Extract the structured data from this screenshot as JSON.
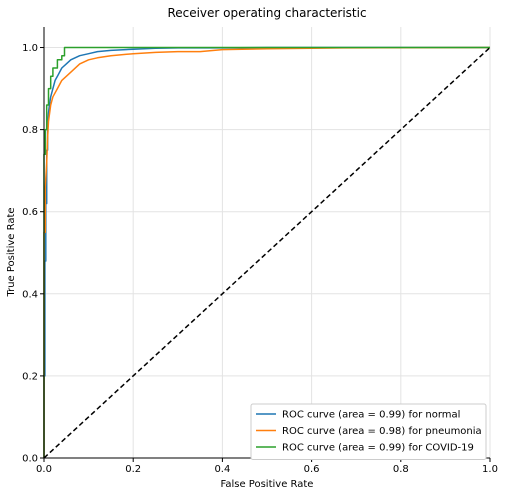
{
  "chart_data": {
    "type": "line",
    "title": "Receiver operating characteristic",
    "xlabel": "False Positive Rate",
    "ylabel": "True Positive Rate",
    "xlim": [
      0,
      1.0
    ],
    "ylim": [
      0,
      1.05
    ],
    "xticks": [
      "0.0",
      "0.2",
      "0.4",
      "0.6",
      "0.8",
      "1.0"
    ],
    "yticks": [
      "0.0",
      "0.2",
      "0.4",
      "0.6",
      "0.8",
      "1.0"
    ],
    "grid": true,
    "legend_position": "lower-right",
    "series": [
      {
        "name": "ROC curve (area = 0.99) for normal",
        "color": "#1f77b4",
        "x": [
          0,
          0,
          0.002,
          0.002,
          0.004,
          0.004,
          0.006,
          0.006,
          0.008,
          0.008,
          0.01,
          0.012,
          0.015,
          0.02,
          0.025,
          0.03,
          0.04,
          0.05,
          0.06,
          0.08,
          0.1,
          0.12,
          0.15,
          0.2,
          0.25,
          0.3,
          0.4,
          0.5,
          1.0
        ],
        "y": [
          0,
          0.2,
          0.2,
          0.48,
          0.48,
          0.62,
          0.62,
          0.75,
          0.75,
          0.8,
          0.84,
          0.86,
          0.88,
          0.9,
          0.92,
          0.93,
          0.95,
          0.96,
          0.97,
          0.98,
          0.985,
          0.99,
          0.993,
          0.996,
          0.998,
          0.999,
          0.999,
          1.0,
          1.0
        ]
      },
      {
        "name": "ROC curve (area = 0.98) for pneumonia",
        "color": "#ff7f0e",
        "x": [
          0,
          0,
          0.003,
          0.003,
          0.006,
          0.008,
          0.01,
          0.015,
          0.02,
          0.03,
          0.04,
          0.05,
          0.06,
          0.08,
          0.1,
          0.12,
          0.15,
          0.2,
          0.25,
          0.3,
          0.35,
          0.4,
          0.5,
          0.6,
          0.67,
          1.0
        ],
        "y": [
          0,
          0.55,
          0.55,
          0.66,
          0.72,
          0.78,
          0.82,
          0.86,
          0.88,
          0.9,
          0.92,
          0.93,
          0.94,
          0.96,
          0.97,
          0.975,
          0.98,
          0.985,
          0.988,
          0.99,
          0.99,
          0.995,
          0.997,
          0.998,
          0.999,
          1.0
        ]
      },
      {
        "name": "ROC curve (area = 0.99) for COVID-19",
        "color": "#2ca02c",
        "x": [
          0,
          0,
          0.003,
          0.003,
          0.006,
          0.006,
          0.01,
          0.01,
          0.015,
          0.015,
          0.02,
          0.02,
          0.03,
          0.03,
          0.04,
          0.04,
          0.046,
          0.046,
          1.0
        ],
        "y": [
          0,
          0.74,
          0.74,
          0.8,
          0.8,
          0.86,
          0.86,
          0.9,
          0.9,
          0.93,
          0.93,
          0.95,
          0.95,
          0.97,
          0.97,
          0.98,
          0.98,
          1.0,
          1.0
        ]
      },
      {
        "name": "",
        "color": "#000000",
        "dashed": true,
        "x": [
          0,
          1.0
        ],
        "y": [
          0,
          1.0
        ]
      }
    ]
  }
}
